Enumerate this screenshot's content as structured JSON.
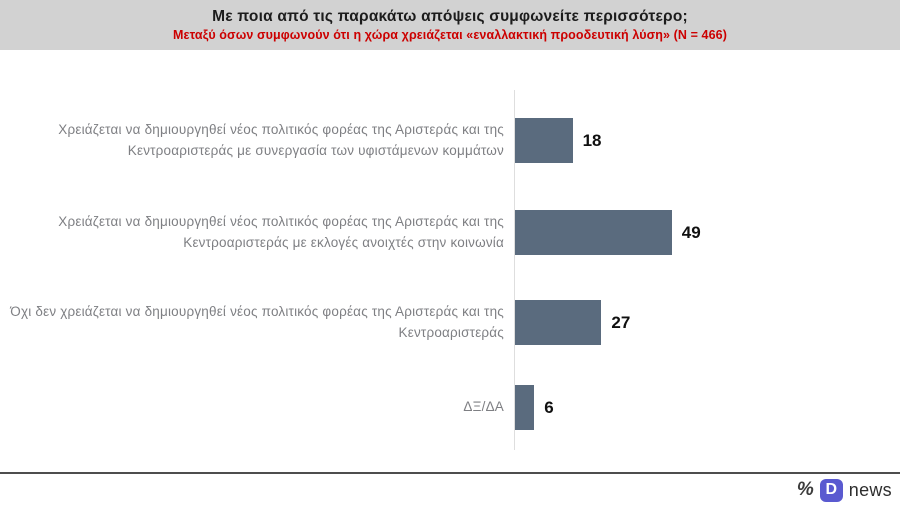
{
  "header": {
    "title": "Με ποια από τις παρακάτω απόψεις συμφωνείτε περισσότερο;",
    "subtitle": "Μεταξύ όσων συμφωνούν ότι η χώρα χρειάζεται «εναλλακτική προοδευτική λύση» (N = 466)"
  },
  "chart_data": {
    "type": "bar",
    "orientation": "horizontal",
    "title": "Με ποια από τις παρακάτω απόψεις συμφωνείτε περισσότερο;",
    "subtitle": "Μεταξύ όσων συμφωνούν ότι η χώρα χρειάζεται «εναλλακτική προοδευτική λύση» (N = 466)",
    "categories": [
      "Χρειάζεται να δημιουργηθεί νέος πολιτικός φορέας της Αριστεράς και της Κεντροαριστεράς με συνεργασία των υφιστάμενων κομμάτων",
      "Χρειάζεται να δημιουργηθεί νέος πολιτικός φορέας της Αριστεράς και της Κεντροαριστεράς με εκλογές ανοιχτές στην κοινωνία",
      "Όχι δεν χρειάζεται να δημιουργηθεί νέος πολιτικός φορέας της Αριστεράς και της Κεντροαριστεράς",
      "ΔΞ/ΔΑ"
    ],
    "values": [
      18,
      49,
      27,
      6
    ],
    "value_labels": [
      "18",
      "49",
      "27",
      "6"
    ],
    "bar_color": "#5a6b7e",
    "xlim": [
      0,
      55
    ],
    "grid": false,
    "legend": false,
    "value_labels_position": "right-of-bar"
  },
  "colors": {
    "header_background": "#d2d2d2",
    "subtitle_red": "#cc0000",
    "bar": "#5a6b7e",
    "axis_line": "#dedede",
    "footer_rule": "#4d4d4d",
    "logo_badge": "#5a5ad0"
  },
  "footer": {
    "percent_symbol": "%",
    "logo_letter": "D",
    "logo_text": "news"
  }
}
